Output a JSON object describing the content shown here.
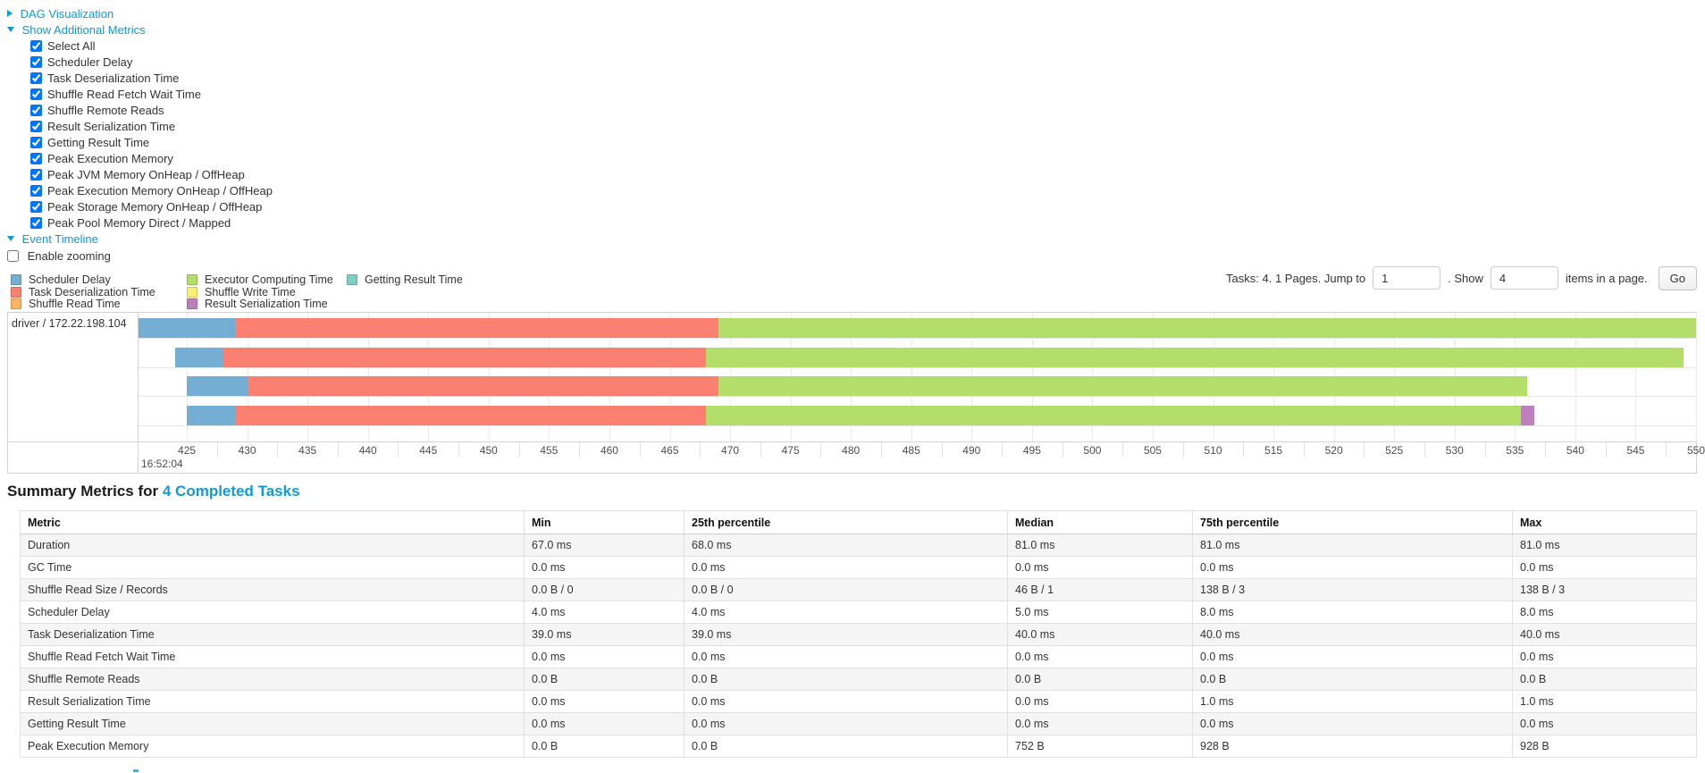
{
  "links": {
    "dag": "DAG Visualization",
    "additional_metrics": "Show Additional Metrics",
    "event_timeline": "Event Timeline"
  },
  "metric_checkboxes": [
    "Select All",
    "Scheduler Delay",
    "Task Deserialization Time",
    "Shuffle Read Fetch Wait Time",
    "Shuffle Remote Reads",
    "Result Serialization Time",
    "Getting Result Time",
    "Peak Execution Memory",
    "Peak JVM Memory OnHeap / OffHeap",
    "Peak Execution Memory OnHeap / OffHeap",
    "Peak Storage Memory OnHeap / OffHeap",
    "Peak Pool Memory Direct / Mapped"
  ],
  "enable_zooming_label": "Enable zooming",
  "pagination": {
    "summary_text": "Tasks: 4. 1 Pages. Jump to",
    "jump_value": "1",
    "show_label": ". Show",
    "show_value": "4",
    "suffix_text": "items in a page.",
    "go_label": "Go"
  },
  "colors": {
    "scheduler_delay": "#74AFD3",
    "task_deserialization": "#FB8072",
    "shuffle_read": "#FDB462",
    "executor_computing": "#B3DE69",
    "shuffle_write": "#FCEE71",
    "result_serialization": "#BC80BD",
    "getting_result": "#7FCEC4",
    "link_blue": "#0e9ad6"
  },
  "legend": {
    "columns": [
      [
        {
          "key": "scheduler_delay",
          "label": "Scheduler Delay"
        },
        {
          "key": "task_deserialization",
          "label": "Task Deserialization Time"
        },
        {
          "key": "shuffle_read",
          "label": "Shuffle Read Time"
        }
      ],
      [
        {
          "key": "executor_computing",
          "label": "Executor Computing Time"
        },
        {
          "key": "shuffle_write",
          "label": "Shuffle Write Time"
        },
        {
          "key": "result_serialization",
          "label": "Result Serialization Time"
        }
      ],
      [
        {
          "key": "getting_result",
          "label": "Getting Result Time"
        }
      ]
    ]
  },
  "chart_data": {
    "type": "timeline",
    "group_label": "driver / 172.22.198.104",
    "axis": {
      "range": [
        421,
        550
      ],
      "ticks": [
        425,
        430,
        435,
        440,
        445,
        450,
        455,
        460,
        465,
        470,
        475,
        480,
        485,
        490,
        495,
        500,
        505,
        510,
        515,
        520,
        525,
        530,
        535,
        540,
        545,
        550
      ],
      "major_label": "16:52:04"
    },
    "tasks": [
      {
        "segments": [
          {
            "type": "scheduler_delay",
            "from": 421,
            "to": 429
          },
          {
            "type": "task_deserialization",
            "from": 429,
            "to": 469
          },
          {
            "type": "executor_computing",
            "from": 469,
            "to": 550
          }
        ]
      },
      {
        "segments": [
          {
            "type": "scheduler_delay",
            "from": 424,
            "to": 428
          },
          {
            "type": "task_deserialization",
            "from": 428,
            "to": 468
          },
          {
            "type": "executor_computing",
            "from": 468,
            "to": 549
          }
        ]
      },
      {
        "segments": [
          {
            "type": "scheduler_delay",
            "from": 425,
            "to": 430
          },
          {
            "type": "task_deserialization",
            "from": 430,
            "to": 469
          },
          {
            "type": "executor_computing",
            "from": 469,
            "to": 536
          }
        ]
      },
      {
        "segments": [
          {
            "type": "scheduler_delay",
            "from": 425,
            "to": 429
          },
          {
            "type": "task_deserialization",
            "from": 429,
            "to": 468
          },
          {
            "type": "executor_computing",
            "from": 468,
            "to": 535.5
          },
          {
            "type": "result_serialization",
            "from": 535.5,
            "to": 536.6
          }
        ]
      }
    ]
  },
  "summary": {
    "title_prefix": "Summary Metrics for",
    "title_link": "4 Completed Tasks",
    "table": {
      "headers": [
        "Metric",
        "Min",
        "25th percentile",
        "Median",
        "75th percentile",
        "Max"
      ],
      "rows": [
        {
          "metric": "Duration",
          "values": [
            "67.0 ms",
            "68.0 ms",
            "81.0 ms",
            "81.0 ms",
            "81.0 ms"
          ]
        },
        {
          "metric": "GC Time",
          "values": [
            "0.0 ms",
            "0.0 ms",
            "0.0 ms",
            "0.0 ms",
            "0.0 ms"
          ]
        },
        {
          "metric": "Shuffle Read Size / Records",
          "values": [
            "0.0 B / 0",
            "0.0 B / 0",
            "46 B / 1",
            "138 B / 3",
            "138 B / 3"
          ]
        },
        {
          "metric": "Scheduler Delay",
          "values": [
            "4.0 ms",
            "4.0 ms",
            "5.0 ms",
            "8.0 ms",
            "8.0 ms"
          ]
        },
        {
          "metric": "Task Deserialization Time",
          "values": [
            "39.0 ms",
            "39.0 ms",
            "40.0 ms",
            "40.0 ms",
            "40.0 ms"
          ]
        },
        {
          "metric": "Shuffle Read Fetch Wait Time",
          "values": [
            "0.0 ms",
            "0.0 ms",
            "0.0 ms",
            "0.0 ms",
            "0.0 ms"
          ]
        },
        {
          "metric": "Shuffle Remote Reads",
          "values": [
            "0.0 B",
            "0.0 B",
            "0.0 B",
            "0.0 B",
            "0.0 B"
          ]
        },
        {
          "metric": "Result Serialization Time",
          "values": [
            "0.0 ms",
            "0.0 ms",
            "0.0 ms",
            "1.0 ms",
            "1.0 ms"
          ]
        },
        {
          "metric": "Getting Result Time",
          "values": [
            "0.0 ms",
            "0.0 ms",
            "0.0 ms",
            "0.0 ms",
            "0.0 ms"
          ]
        },
        {
          "metric": "Peak Execution Memory",
          "values": [
            "0.0 B",
            "0.0 B",
            "752 B",
            "928 B",
            "928 B"
          ]
        }
      ]
    }
  }
}
